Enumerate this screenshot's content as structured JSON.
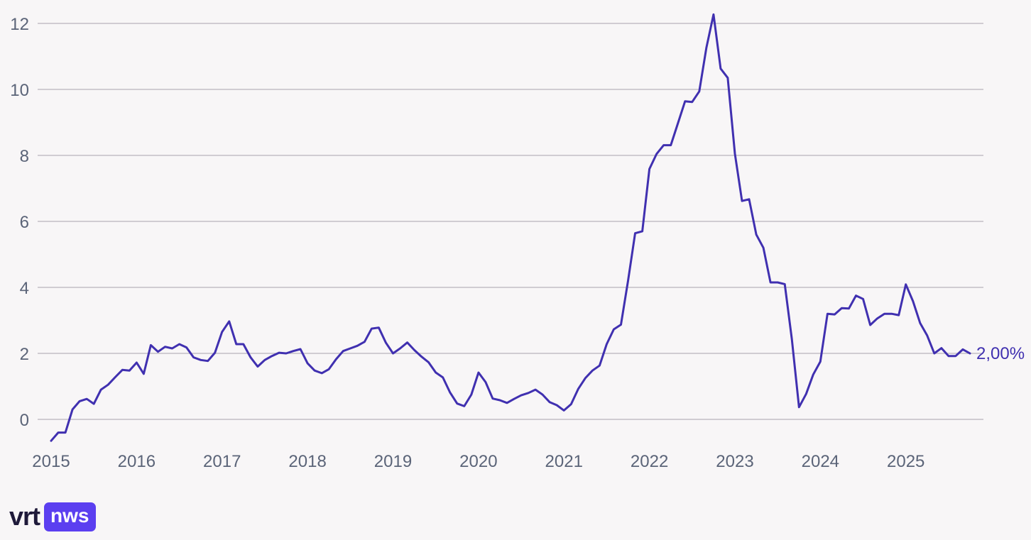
{
  "chart_data": {
    "type": "line",
    "title": "",
    "xlabel": "",
    "ylabel": "",
    "ylim": [
      -0.7,
      12.3
    ],
    "xlim": [
      "2015-01",
      "2025-10"
    ],
    "y_ticks": [
      "0",
      "2",
      "4",
      "6",
      "8",
      "10",
      "12"
    ],
    "x_ticks": [
      "2015",
      "2016",
      "2017",
      "2018",
      "2019",
      "2020",
      "2021",
      "2022",
      "2023",
      "2024",
      "2025"
    ],
    "grid": true,
    "line_color": "#4030b0",
    "end_label": "2,00%",
    "series": [
      {
        "x": [
          "2015-01",
          "2015-02",
          "2015-03",
          "2015-04",
          "2015-05",
          "2015-06",
          "2015-07",
          "2015-08",
          "2015-09",
          "2015-10",
          "2015-11",
          "2015-12",
          "2016-01",
          "2016-02",
          "2016-03",
          "2016-04",
          "2016-05",
          "2016-06",
          "2016-07",
          "2016-08",
          "2016-09",
          "2016-10",
          "2016-11",
          "2016-12",
          "2017-01",
          "2017-02",
          "2017-03",
          "2017-04",
          "2017-05",
          "2017-06",
          "2017-07",
          "2017-08",
          "2017-09",
          "2017-10",
          "2017-11",
          "2017-12",
          "2018-01",
          "2018-02",
          "2018-03",
          "2018-04",
          "2018-05",
          "2018-06",
          "2018-07",
          "2018-08",
          "2018-09",
          "2018-10",
          "2018-11",
          "2018-12",
          "2019-01",
          "2019-02",
          "2019-03",
          "2019-04",
          "2019-05",
          "2019-06",
          "2019-07",
          "2019-08",
          "2019-09",
          "2019-10",
          "2019-11",
          "2019-12",
          "2020-01",
          "2020-02",
          "2020-03",
          "2020-04",
          "2020-05",
          "2020-06",
          "2020-07",
          "2020-08",
          "2020-09",
          "2020-10",
          "2020-11",
          "2020-12",
          "2021-01",
          "2021-02",
          "2021-03",
          "2021-04",
          "2021-05",
          "2021-06",
          "2021-07",
          "2021-08",
          "2021-09",
          "2021-10",
          "2021-11",
          "2021-12",
          "2022-01",
          "2022-02",
          "2022-03",
          "2022-04",
          "2022-05",
          "2022-06",
          "2022-07",
          "2022-08",
          "2022-09",
          "2022-10",
          "2022-11",
          "2022-12",
          "2023-01",
          "2023-02",
          "2023-03",
          "2023-04",
          "2023-05",
          "2023-06",
          "2023-07",
          "2023-08",
          "2023-09",
          "2023-10",
          "2023-11",
          "2023-12",
          "2024-01",
          "2024-02",
          "2024-03",
          "2024-04",
          "2024-05",
          "2024-06",
          "2024-07",
          "2024-08",
          "2024-09",
          "2024-10",
          "2024-11",
          "2024-12",
          "2025-01",
          "2025-02",
          "2025-03",
          "2025-04",
          "2025-05",
          "2025-06",
          "2025-07",
          "2025-08",
          "2025-09",
          "2025-10"
        ],
        "values": [
          -0.65,
          -0.4,
          -0.4,
          0.3,
          0.55,
          0.62,
          0.47,
          0.9,
          1.05,
          1.28,
          1.5,
          1.48,
          1.72,
          1.38,
          2.25,
          2.05,
          2.2,
          2.15,
          2.28,
          2.18,
          1.88,
          1.8,
          1.77,
          2.02,
          2.65,
          2.97,
          2.28,
          2.28,
          1.88,
          1.6,
          1.8,
          1.92,
          2.02,
          2.0,
          2.07,
          2.13,
          1.7,
          1.48,
          1.4,
          1.52,
          1.82,
          2.07,
          2.15,
          2.23,
          2.35,
          2.75,
          2.78,
          2.32,
          2.0,
          2.15,
          2.33,
          2.1,
          1.9,
          1.73,
          1.42,
          1.27,
          0.82,
          0.48,
          0.4,
          0.75,
          1.42,
          1.13,
          0.63,
          0.58,
          0.5,
          0.62,
          0.73,
          0.8,
          0.9,
          0.75,
          0.52,
          0.43,
          0.27,
          0.46,
          0.92,
          1.25,
          1.48,
          1.63,
          2.28,
          2.73,
          2.87,
          4.2,
          5.64,
          5.7,
          7.59,
          8.04,
          8.31,
          8.31,
          8.97,
          9.64,
          9.62,
          9.94,
          11.27,
          12.27,
          10.63,
          10.35,
          8.05,
          6.62,
          6.67,
          5.6,
          5.2,
          4.15,
          4.15,
          4.1,
          2.43,
          0.37,
          0.77,
          1.36,
          1.75,
          3.2,
          3.18,
          3.37,
          3.36,
          3.75,
          3.65,
          2.86,
          3.06,
          3.2,
          3.2,
          3.16,
          4.09,
          3.58,
          2.92,
          2.54,
          2.0,
          2.16,
          1.92,
          1.92,
          2.12,
          2.0
        ]
      }
    ]
  },
  "brand": {
    "logo_text": "vrt",
    "badge_text": "nws",
    "badge_color": "#5b3ff0"
  }
}
